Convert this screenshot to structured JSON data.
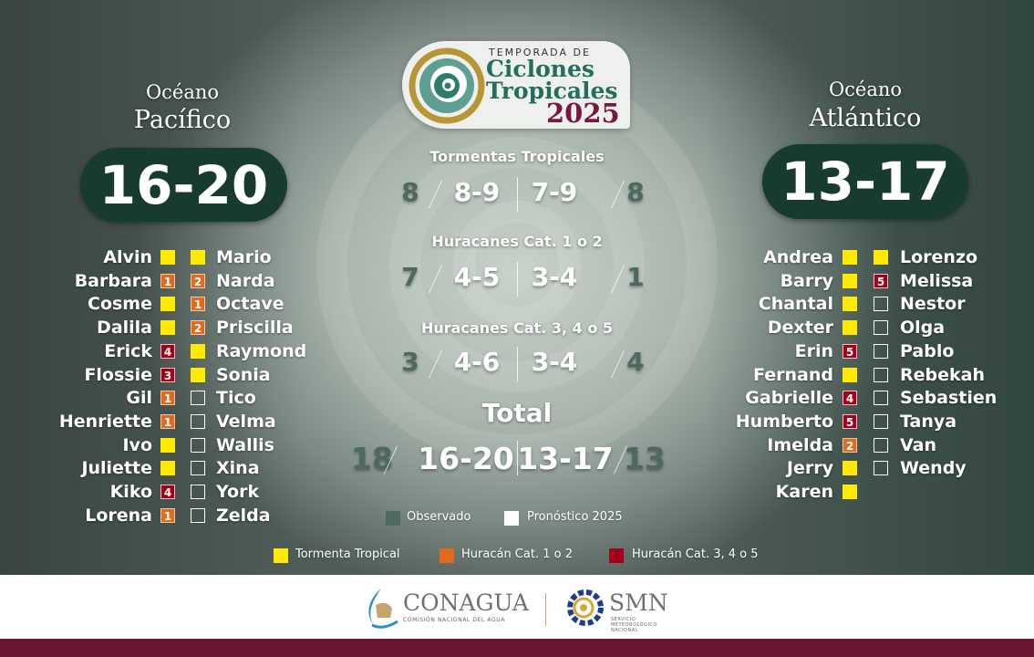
{
  "logo": {
    "line1": "TEMPORADA DE",
    "line2": "Ciclones",
    "line3": "Tropicales",
    "year": "2025"
  },
  "pacific": {
    "label_small": "Océano",
    "label_big": "Pacífico",
    "forecast": "16-20",
    "storms": [
      {
        "name": "Alvin",
        "cat": 0
      },
      {
        "name": "Barbara",
        "cat": 1
      },
      {
        "name": "Cosme",
        "cat": 0
      },
      {
        "name": "Dalila",
        "cat": 0
      },
      {
        "name": "Erick",
        "cat": 4
      },
      {
        "name": "Flossie",
        "cat": 3
      },
      {
        "name": "Gil",
        "cat": 1
      },
      {
        "name": "Henriette",
        "cat": 1
      },
      {
        "name": "Ivo",
        "cat": 0
      },
      {
        "name": "Juliette",
        "cat": 0
      },
      {
        "name": "Kiko",
        "cat": 4
      },
      {
        "name": "Lorena",
        "cat": 1
      },
      {
        "name": "Mario",
        "cat": 0
      },
      {
        "name": "Narda",
        "cat": 2
      },
      {
        "name": "Octave",
        "cat": 1
      },
      {
        "name": "Priscilla",
        "cat": 2
      },
      {
        "name": "Raymond",
        "cat": 0
      },
      {
        "name": "Sonia",
        "cat": 0
      },
      {
        "name": "Tico",
        "cat": null
      },
      {
        "name": "Velma",
        "cat": null
      },
      {
        "name": "Wallis",
        "cat": null
      },
      {
        "name": "Xina",
        "cat": null
      },
      {
        "name": "York",
        "cat": null
      },
      {
        "name": "Zelda",
        "cat": null
      }
    ]
  },
  "atlantic": {
    "label_small": "Océano",
    "label_big": "Atlántico",
    "forecast": "13-17",
    "storms": [
      {
        "name": "Andrea",
        "cat": 0
      },
      {
        "name": "Barry",
        "cat": 0
      },
      {
        "name": "Chantal",
        "cat": 0
      },
      {
        "name": "Dexter",
        "cat": 0
      },
      {
        "name": "Erin",
        "cat": 5
      },
      {
        "name": "Fernand",
        "cat": 0
      },
      {
        "name": "Gabrielle",
        "cat": 4
      },
      {
        "name": "Humberto",
        "cat": 5
      },
      {
        "name": "Imelda",
        "cat": 2
      },
      {
        "name": "Jerry",
        "cat": 0
      },
      {
        "name": "Karen",
        "cat": 0
      },
      {
        "name": "Lorenzo",
        "cat": 0
      },
      {
        "name": "Melissa",
        "cat": 5
      },
      {
        "name": "Nestor",
        "cat": null
      },
      {
        "name": "Olga",
        "cat": null
      },
      {
        "name": "Pablo",
        "cat": null
      },
      {
        "name": "Rebekah",
        "cat": null
      },
      {
        "name": "Sebastien",
        "cat": null
      },
      {
        "name": "Tanya",
        "cat": null
      },
      {
        "name": "Van",
        "cat": null
      },
      {
        "name": "Wendy",
        "cat": null
      }
    ]
  },
  "summary": [
    {
      "title": "Tormentas Tropicales",
      "pac_observed": "8",
      "pac_forecast": "8-9",
      "atl_forecast": "7-9",
      "atl_observed": "8"
    },
    {
      "title": "Huracanes Cat. 1 o 2",
      "pac_observed": "7",
      "pac_forecast": "4-5",
      "atl_forecast": "3-4",
      "atl_observed": "1"
    },
    {
      "title": "Huracanes Cat. 3, 4 o 5",
      "pac_observed": "3",
      "pac_forecast": "4-6",
      "atl_forecast": "3-4",
      "atl_observed": "4"
    },
    {
      "title": "Total",
      "pac_observed": "18",
      "pac_forecast": "16-20",
      "atl_forecast": "13-17",
      "atl_observed": "13"
    }
  ],
  "legend_values": {
    "observed": "Observado",
    "forecast": "Pronóstico 2025",
    "observed_color": "#4e6a60",
    "forecast_color": "#ffffff"
  },
  "legend_categories": [
    {
      "label": "Tormenta Tropical",
      "color": "#ffea00"
    },
    {
      "label": "Huracán Cat. 1 o 2",
      "color": "#e06b1f"
    },
    {
      "label": "Huracán Cat. 3, 4 o 5",
      "color": "#a3001b"
    }
  ],
  "footer": {
    "conagua": "CONAGUA",
    "conagua_sub": "COMISIÓN NACIONAL DEL AGUA",
    "smn": "SMN",
    "smn_sub": "SERVICIO METEOROLÓGICO NACIONAL",
    "bar_color": "#6b1533"
  }
}
